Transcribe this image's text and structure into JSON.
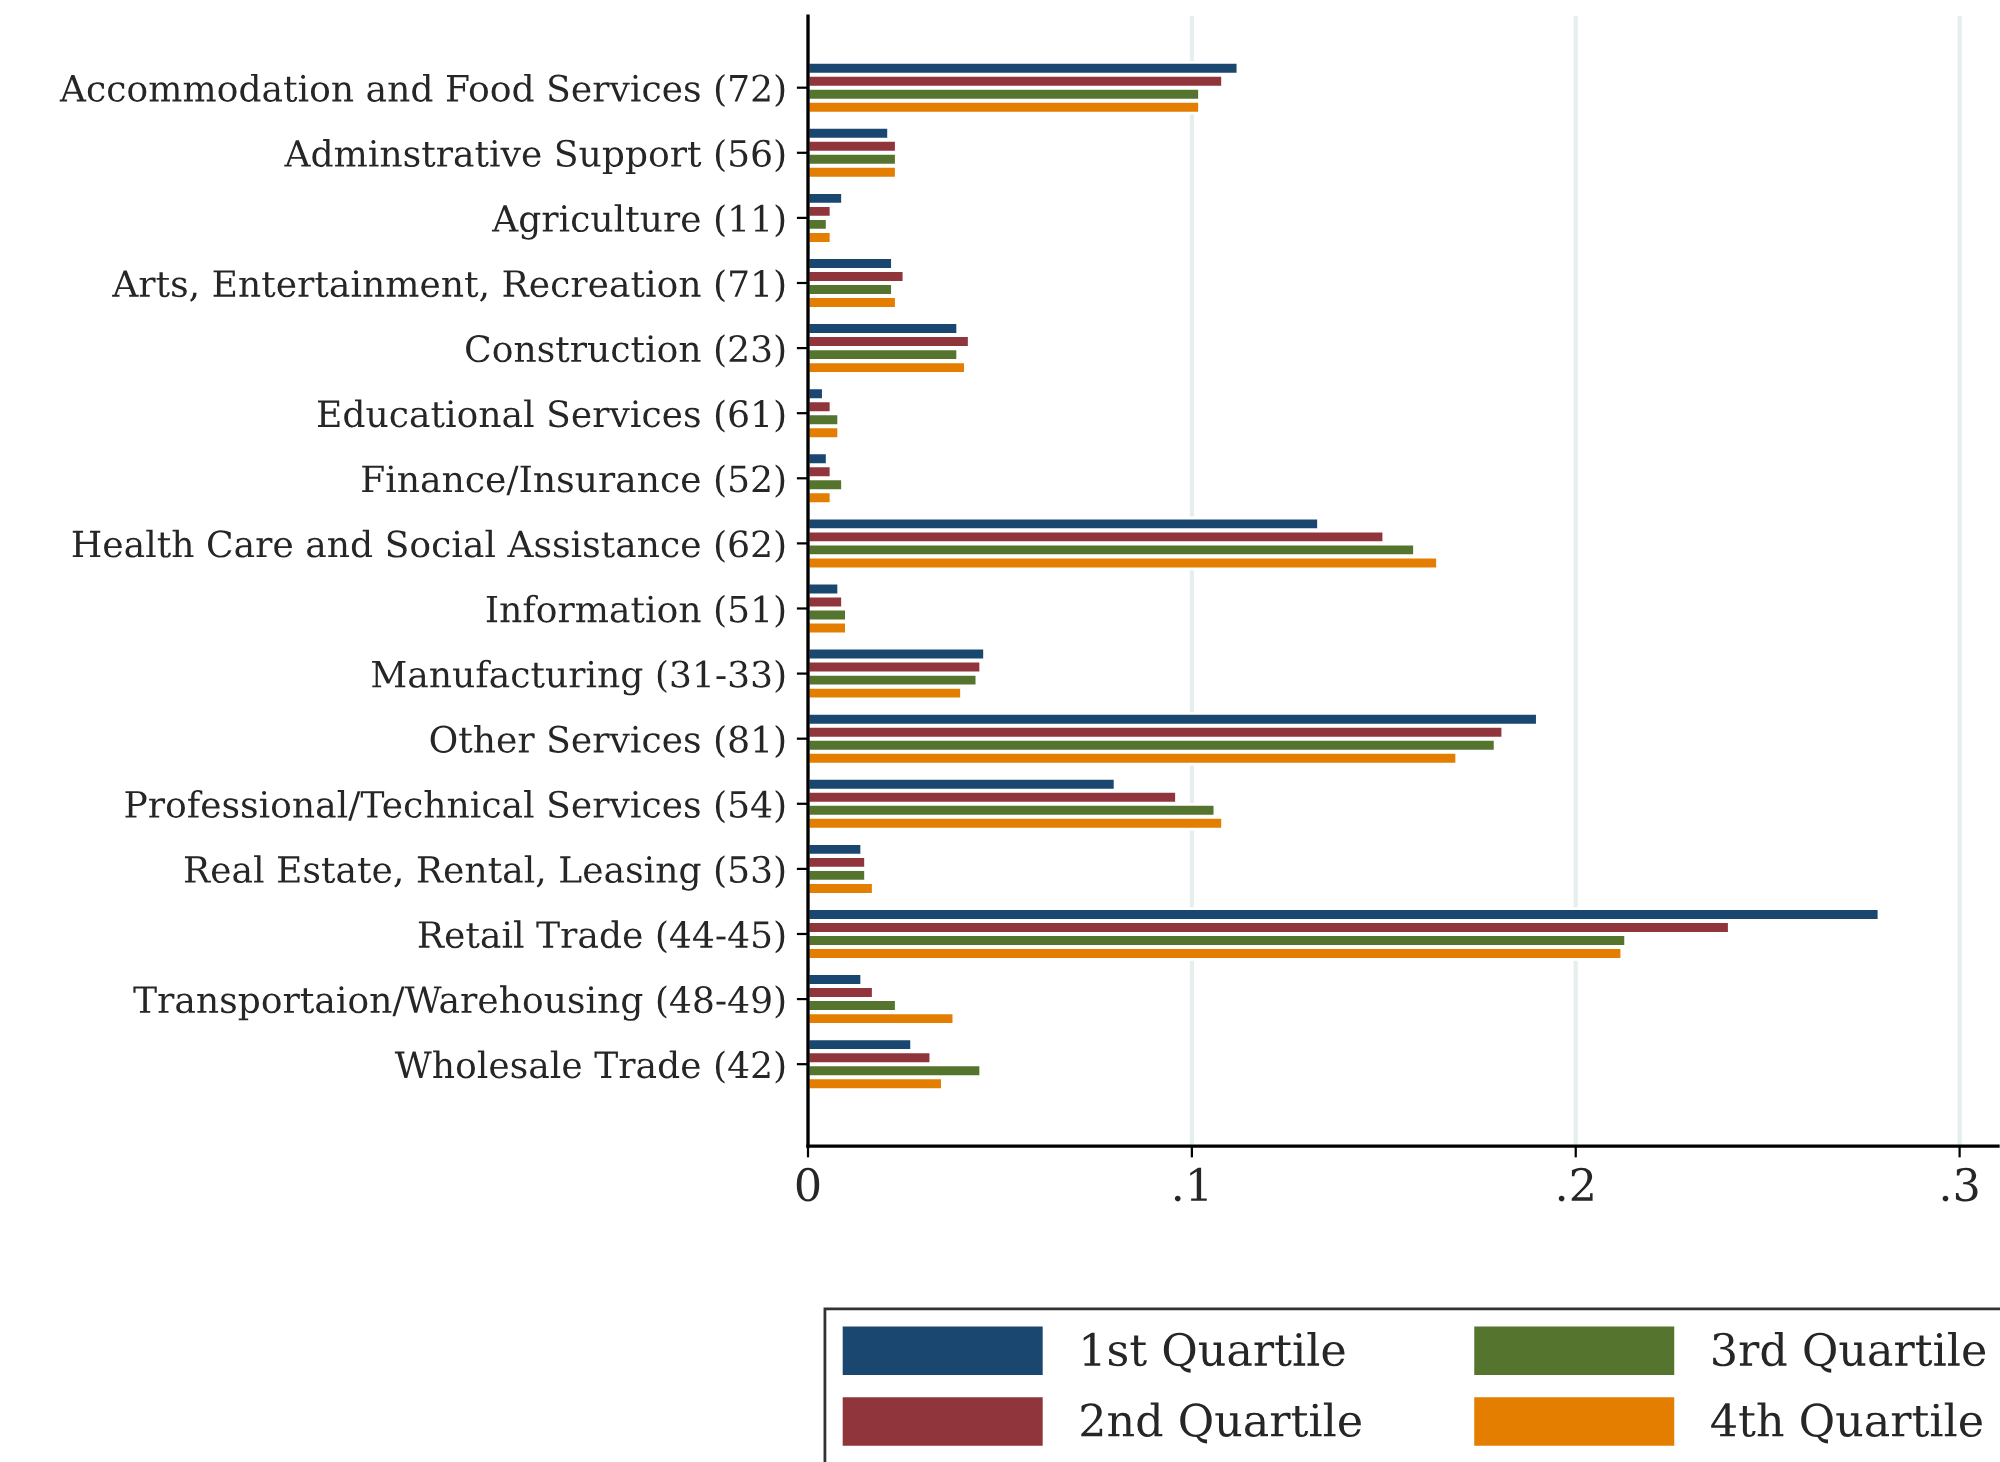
{
  "chart_data": {
    "type": "bar",
    "orientation": "horizontal",
    "categories": [
      "Accommodation and Food Services (72)",
      "Adminstrative Support (56)",
      "Agriculture (11)",
      "Arts, Entertainment, Recreation (71)",
      "Construction (23)",
      "Educational Services (61)",
      "Finance/Insurance (52)",
      "Health Care and Social Assistance (62)",
      "Information (51)",
      "Manufacturing (31-33)",
      "Other Services (81)",
      "Professional/Technical Services (54)",
      "Real Estate, Rental, Leasing (53)",
      "Retail Trade (44-45)",
      "Transportaion/Warehousing (48-49)",
      "Wholesale Trade (42)"
    ],
    "series": [
      {
        "name": "1st Quartile",
        "color": "#1a476f",
        "values": [
          0.112,
          0.021,
          0.009,
          0.022,
          0.039,
          0.004,
          0.005,
          0.133,
          0.008,
          0.046,
          0.19,
          0.08,
          0.014,
          0.279,
          0.014,
          0.027
        ]
      },
      {
        "name": "2nd Quartile",
        "color": "#90353b",
        "values": [
          0.108,
          0.023,
          0.006,
          0.025,
          0.042,
          0.006,
          0.006,
          0.15,
          0.009,
          0.045,
          0.181,
          0.096,
          0.015,
          0.24,
          0.017,
          0.032
        ]
      },
      {
        "name": "3rd Quartile",
        "color": "#55752f",
        "values": [
          0.102,
          0.023,
          0.005,
          0.022,
          0.039,
          0.008,
          0.009,
          0.158,
          0.01,
          0.044,
          0.179,
          0.106,
          0.015,
          0.213,
          0.023,
          0.045
        ]
      },
      {
        "name": "4th Quartile",
        "color": "#e37e00",
        "values": [
          0.102,
          0.023,
          0.006,
          0.023,
          0.041,
          0.008,
          0.006,
          0.164,
          0.01,
          0.04,
          0.169,
          0.108,
          0.017,
          0.212,
          0.038,
          0.035
        ]
      }
    ],
    "xlim": [
      0,
      0.31
    ],
    "xticks": [
      0,
      {
        "value": 0.1,
        "label": ".1"
      },
      {
        "value": 0.2,
        "label": ".2"
      },
      {
        "value": 0.3,
        "label": ".3"
      }
    ],
    "grid": "x",
    "legend": "bottom"
  }
}
